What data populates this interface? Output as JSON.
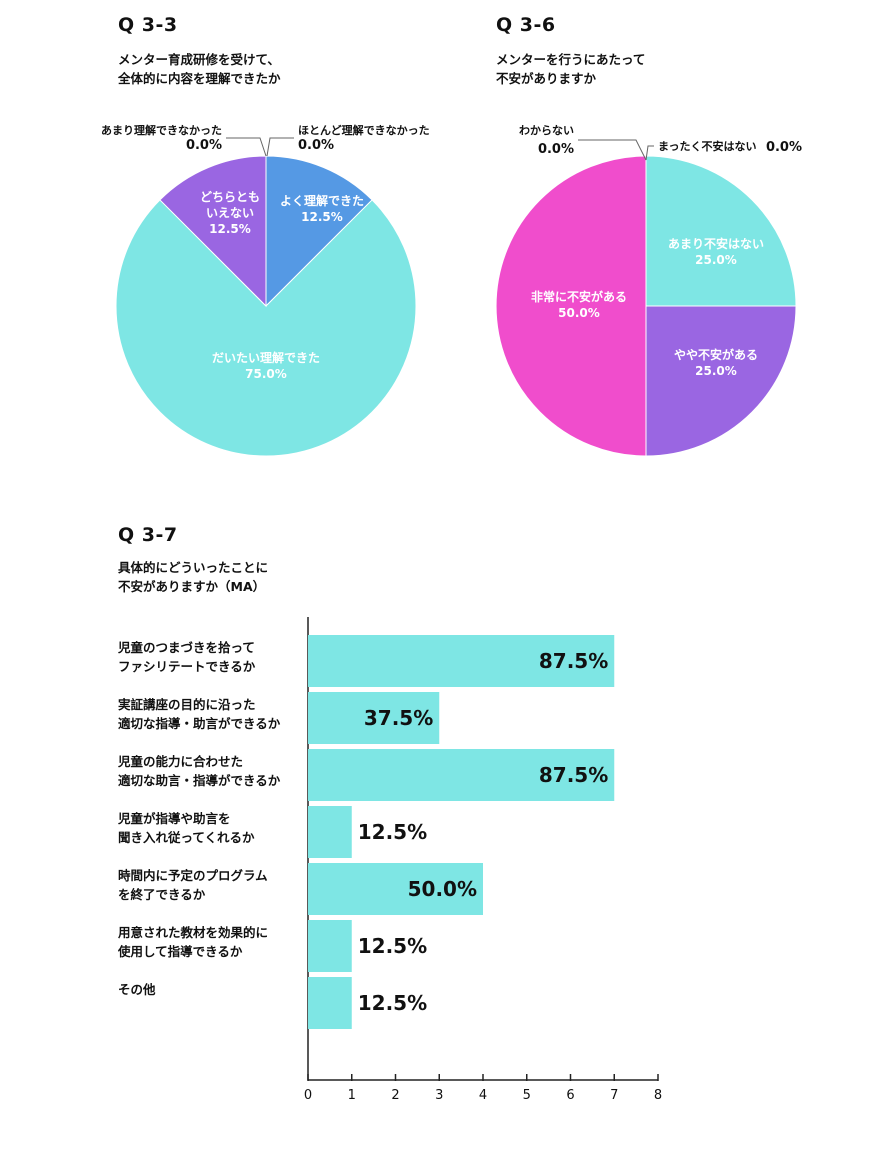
{
  "q33": {
    "title": "Q 3-3",
    "subtitle": "メンター育成研修を受けて、\n全体的に内容を理解できたか"
  },
  "q36": {
    "title": "Q 3-6",
    "subtitle": "メンターを行うにあたって\n不安がありますか"
  },
  "q37": {
    "title": "Q 3-7",
    "subtitle": "具体的にどういったことに\n不安がありますか（MA）"
  },
  "colors": {
    "cyan": "#7ee6e4",
    "blue": "#5599e4",
    "purple": "#9a66e2",
    "pink": "#f04dcc",
    "axis": "#222222"
  },
  "chart_data": [
    {
      "type": "pie",
      "id": "q33",
      "slices": [
        {
          "label": "よく理解できた",
          "value": 12.5,
          "value_text": "12.5%",
          "color": "#5599e4"
        },
        {
          "label": "だいたい理解できた",
          "value": 75.0,
          "value_text": "75.0%",
          "color": "#7ee6e4"
        },
        {
          "label": "どちらとも\nいえない",
          "value": 12.5,
          "value_text": "12.5%",
          "color": "#9a66e2"
        },
        {
          "label": "あまり理解できなかった",
          "value": 0.0,
          "value_text": "0.0%",
          "color": "#9a66e2"
        },
        {
          "label": "ほとんど理解できなかった",
          "value": 0.0,
          "value_text": "0.0%",
          "color": "#5599e4"
        }
      ]
    },
    {
      "type": "pie",
      "id": "q36",
      "slices": [
        {
          "label": "あまり不安はない",
          "value": 25.0,
          "value_text": "25.0%",
          "color": "#7ee6e4"
        },
        {
          "label": "やや不安がある",
          "value": 25.0,
          "value_text": "25.0%",
          "color": "#9a66e2"
        },
        {
          "label": "非常に不安がある",
          "value": 50.0,
          "value_text": "50.0%",
          "color": "#f04dcc"
        },
        {
          "label": "わからない",
          "value": 0.0,
          "value_text": "0.0%",
          "color": "#f04dcc"
        },
        {
          "label": "まったく不安はない",
          "value": 0.0,
          "value_text": "0.0%",
          "color": "#7ee6e4"
        }
      ]
    },
    {
      "type": "bar",
      "id": "q37",
      "orientation": "horizontal",
      "categories": [
        "児童のつまづきを拾って\nファシリテートできるか",
        "実証講座の目的に沿った\n適切な指導・助言ができるか",
        "児童の能力に合わせた\n適切な助言・指導ができるか",
        "児童が指導や助言を\n聞き入れ従ってくれるか",
        "時間内に予定のプログラム\nを終了できるか",
        "用意された教材を効果的に\n使用して指導できるか",
        "その他"
      ],
      "values": [
        7,
        3,
        7,
        1,
        4,
        1,
        1
      ],
      "value_labels": [
        "87.5%",
        "37.5%",
        "87.5%",
        "12.5%",
        "50.0%",
        "12.5%",
        "12.5%"
      ],
      "xlim": [
        0,
        8
      ],
      "xticks": [
        "0",
        "1",
        "2",
        "3",
        "4",
        "5",
        "6",
        "7",
        "8"
      ],
      "color": "#7ee6e4"
    }
  ]
}
